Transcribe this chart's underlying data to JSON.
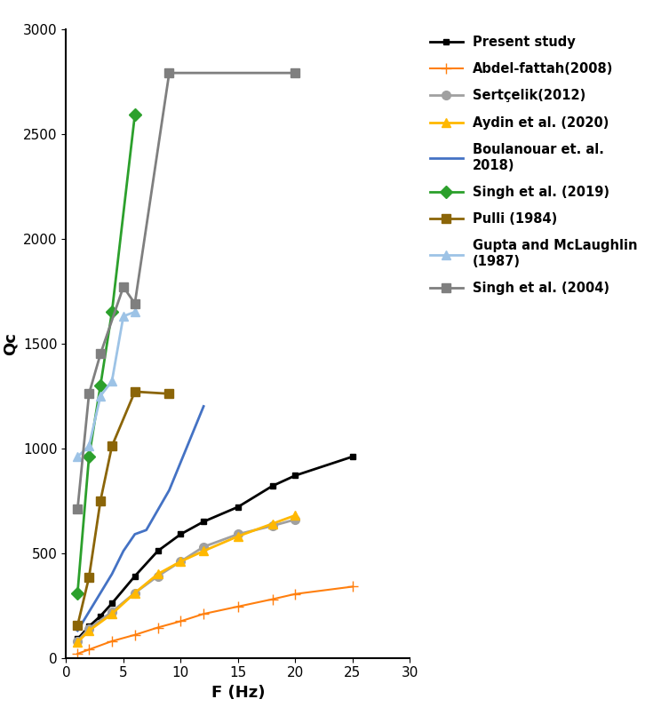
{
  "title": "",
  "xlabel": "F (Hz)",
  "ylabel": "Qc",
  "xlim": [
    0,
    30
  ],
  "ylim": [
    0,
    3000
  ],
  "xticks": [
    0,
    5,
    10,
    15,
    20,
    25,
    30
  ],
  "yticks": [
    0,
    500,
    1000,
    1500,
    2000,
    2500,
    3000
  ],
  "series": [
    {
      "label": "Present study",
      "color": "#000000",
      "marker": "s",
      "markersize": 5,
      "linewidth": 2,
      "linestyle": "-",
      "x": [
        1,
        2,
        3,
        4,
        6,
        8,
        10,
        12,
        15,
        18,
        20,
        25
      ],
      "y": [
        90,
        150,
        200,
        260,
        390,
        510,
        590,
        650,
        720,
        820,
        870,
        960
      ]
    },
    {
      "label": "Abdel-fattah(2008)",
      "color": "#FF7F0E",
      "marker": "+",
      "markersize": 8,
      "linewidth": 1.5,
      "linestyle": "-",
      "x": [
        1,
        2,
        4,
        6,
        8,
        10,
        12,
        15,
        18,
        20,
        25
      ],
      "y": [
        20,
        40,
        80,
        110,
        145,
        175,
        210,
        245,
        280,
        305,
        340
      ]
    },
    {
      "label": "Sertçelik(2012)",
      "color": "#A0A0A0",
      "marker": "o",
      "markersize": 7,
      "linewidth": 2,
      "linestyle": "-",
      "x": [
        1,
        2,
        4,
        6,
        8,
        10,
        12,
        15,
        18,
        20
      ],
      "y": [
        80,
        140,
        220,
        310,
        390,
        460,
        530,
        590,
        630,
        660
      ]
    },
    {
      "label": "Aydin et al. (2020)",
      "color": "#FFB800",
      "marker": "^",
      "markersize": 7,
      "linewidth": 2,
      "linestyle": "-",
      "x": [
        1,
        2,
        4,
        6,
        8,
        10,
        12,
        15,
        18,
        20
      ],
      "y": [
        75,
        130,
        210,
        310,
        400,
        460,
        510,
        580,
        640,
        680
      ]
    },
    {
      "label": "Boulanouar et. al.\n2018)",
      "color": "#4472C4",
      "marker": null,
      "markersize": 0,
      "linewidth": 2,
      "linestyle": "-",
      "x": [
        1,
        2,
        3,
        4,
        5,
        6,
        7,
        9,
        12
      ],
      "y": [
        130,
        220,
        310,
        400,
        510,
        590,
        610,
        800,
        1200
      ]
    },
    {
      "label": "Singh et al. (2019)",
      "color": "#2CA02C",
      "marker": "D",
      "markersize": 7,
      "linewidth": 2,
      "linestyle": "-",
      "x": [
        1,
        2,
        3,
        4,
        6
      ],
      "y": [
        310,
        960,
        1300,
        1650,
        2590
      ]
    },
    {
      "label": "Pulli (1984)",
      "color": "#8B6508",
      "marker": "s",
      "markersize": 7,
      "linewidth": 2,
      "linestyle": "-",
      "x": [
        1,
        2,
        3,
        4,
        6,
        9
      ],
      "y": [
        155,
        385,
        750,
        1010,
        1270,
        1260
      ]
    },
    {
      "label": "Gupta and McLaughlin\n(1987)",
      "color": "#9DC3E6",
      "marker": "^",
      "markersize": 7,
      "linewidth": 2,
      "linestyle": "-",
      "x": [
        1,
        2,
        3,
        4,
        5,
        6
      ],
      "y": [
        960,
        1010,
        1250,
        1320,
        1630,
        1650
      ]
    },
    {
      "label": "Singh et al. (2004)",
      "color": "#7F7F7F",
      "marker": "s",
      "markersize": 7,
      "linewidth": 2,
      "linestyle": "-",
      "x": [
        1,
        2,
        3,
        5,
        6,
        9,
        20
      ],
      "y": [
        710,
        1260,
        1450,
        1770,
        1690,
        2790,
        2790
      ]
    }
  ],
  "legend_fontsize": 10.5,
  "axis_label_fontsize": 13,
  "tick_fontsize": 11,
  "figsize": [
    7.44,
    8.14
  ],
  "dpi": 100
}
